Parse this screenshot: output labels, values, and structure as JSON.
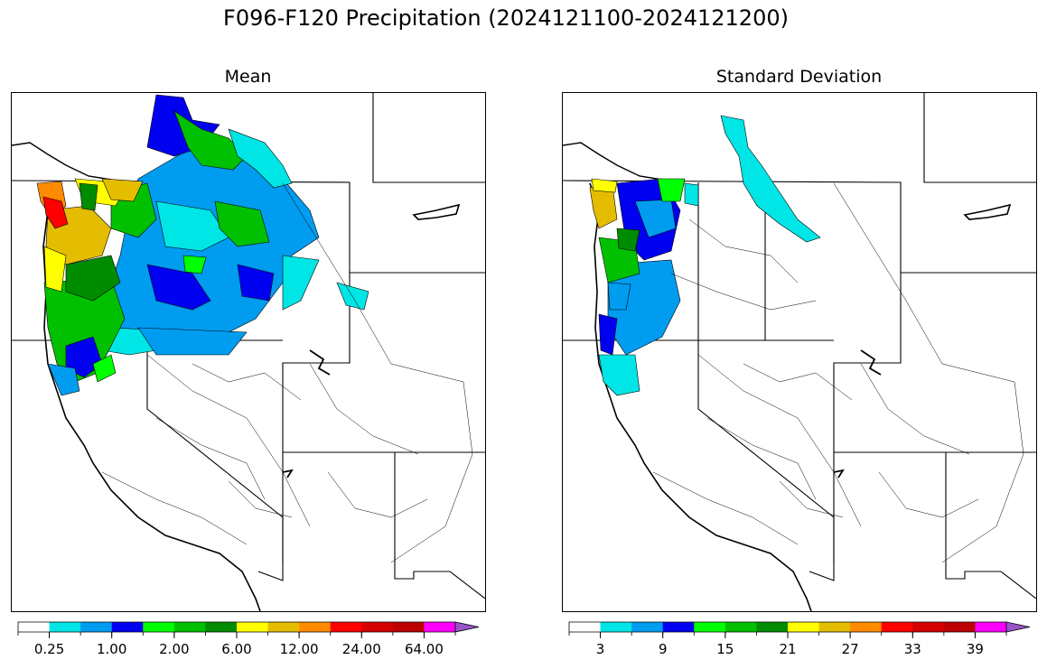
{
  "figure": {
    "title": "F096-F120 Precipitation (2024121100-2024121200)"
  },
  "panels": [
    {
      "title": "Mean",
      "colorbar": {
        "colors": [
          "#ffffff",
          "#00e5e5",
          "#009cf0",
          "#0000f0",
          "#00ff00",
          "#00c000",
          "#008c00",
          "#ffff00",
          "#e5bd00",
          "#ff8c00",
          "#ff0000",
          "#d50000",
          "#bc0000",
          "#ff00ff",
          "#9955c9"
        ],
        "tick_labels": [
          "0.25",
          "1.00",
          "2.00",
          "6.00",
          "12.00",
          "24.00",
          "64.00"
        ],
        "extend": "max"
      }
    },
    {
      "title": "Standard Deviation",
      "colorbar": {
        "colors": [
          "#ffffff",
          "#00e5e5",
          "#009cf0",
          "#0000f0",
          "#00ff00",
          "#00c000",
          "#008c00",
          "#ffff00",
          "#e5bd00",
          "#ff8c00",
          "#ff0000",
          "#d50000",
          "#bc0000",
          "#ff00ff",
          "#9955c9"
        ],
        "tick_labels": [
          "3",
          "9",
          "15",
          "21",
          "27",
          "33",
          "39"
        ],
        "extend": "max"
      }
    }
  ]
}
